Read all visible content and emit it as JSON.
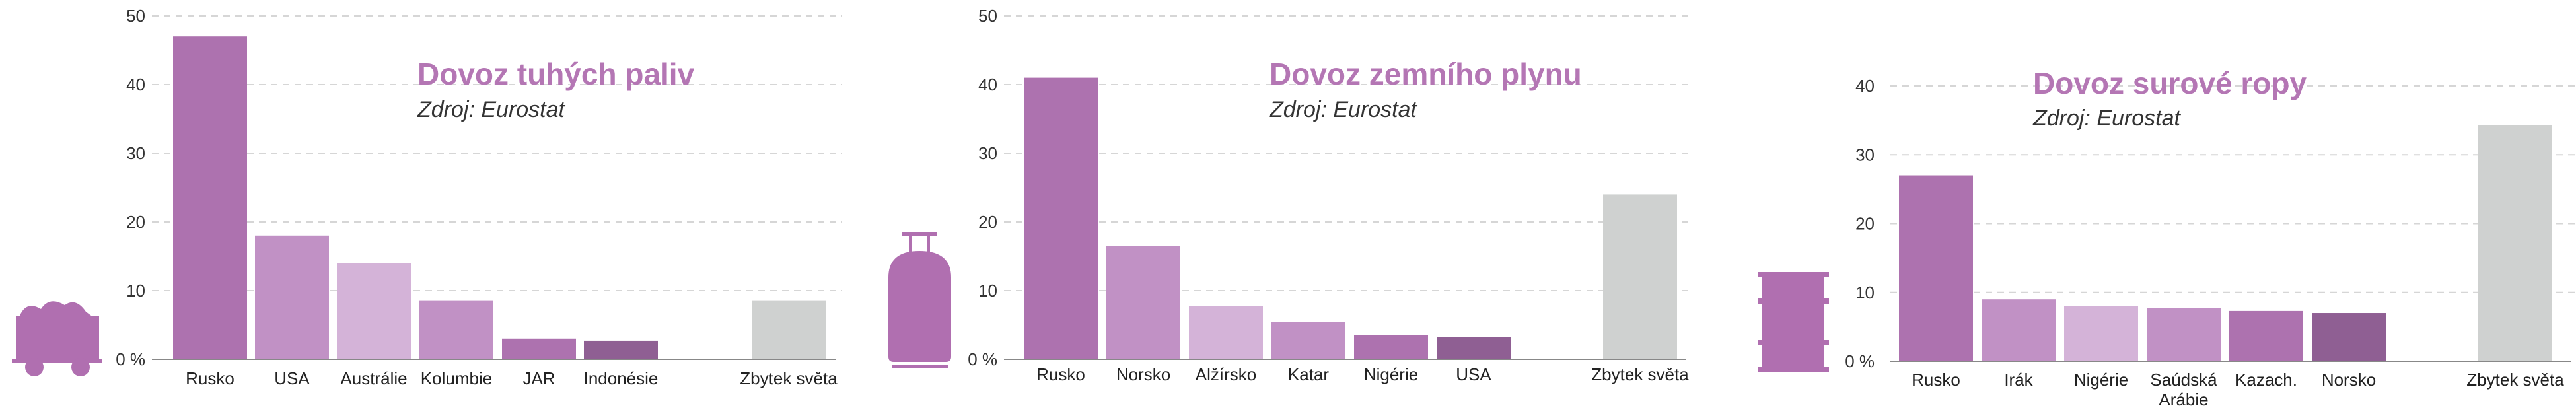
{
  "colors": {
    "c1": "#ad72af",
    "c2": "#c191c5",
    "c3": "#d4b3d8",
    "c4": "#8f5f93",
    "grey": "#cfd1d0",
    "title": "#b476b4",
    "icon": "#b06fb0"
  },
  "chart_data": [
    {
      "type": "bar",
      "title": "Dovoz tuhých paliv",
      "subtitle": "Zdroj: Eurostat",
      "icon": "coal-wagon-icon",
      "categories": [
        "Rusko",
        "USA",
        "Austrálie",
        "Kolumbie",
        "JAR",
        "Indonésie",
        "Zbytek světa"
      ],
      "values": [
        47,
        18,
        14,
        8.5,
        3,
        2.7,
        8.5
      ],
      "colors": [
        "c1",
        "c2",
        "c3",
        "c2",
        "c1",
        "c4",
        "grey"
      ],
      "ylim": [
        0,
        50
      ],
      "yticks": [
        "0 %",
        "10",
        "20",
        "30",
        "40",
        "50"
      ],
      "grid": true
    },
    {
      "type": "bar",
      "title": "Dovoz zemního plynu",
      "subtitle": "Zdroj: Eurostat",
      "icon": "gas-cylinder-icon",
      "categories": [
        "Rusko",
        "Norsko",
        "Alžírsko",
        "Katar",
        "Nigérie",
        "USA",
        "Zbytek světa"
      ],
      "values": [
        41,
        16.5,
        7.7,
        5.4,
        3.5,
        3.2,
        24
      ],
      "colors": [
        "c1",
        "c2",
        "c3",
        "c2",
        "c1",
        "c4",
        "grey"
      ],
      "ylim": [
        0,
        50
      ],
      "yticks": [
        "0 %",
        "10",
        "20",
        "30",
        "40",
        "50"
      ],
      "grid": true
    },
    {
      "type": "bar",
      "title": "Dovoz surové ropy",
      "subtitle": "Zdroj: Eurostat",
      "icon": "oil-barrel-icon",
      "categories": [
        "Rusko",
        "Irák",
        "Nigérie",
        "Saúdská Arábie",
        "Kazach.",
        "Norsko",
        "Zbytek světa"
      ],
      "category_lines": [
        [
          "Rusko"
        ],
        [
          "Irák"
        ],
        [
          "Nigérie"
        ],
        [
          "Saúdská",
          "Arábie"
        ],
        [
          "Kazach."
        ],
        [
          "Norsko"
        ],
        [
          "Zbytek světa"
        ]
      ],
      "values": [
        27,
        9,
        8,
        7.7,
        7.3,
        7,
        34.3
      ],
      "colors": [
        "c1",
        "c2",
        "c3",
        "c2",
        "c1",
        "c4",
        "grey"
      ],
      "ylim": [
        0,
        40
      ],
      "yticks": [
        "0 %",
        "10",
        "20",
        "30",
        "40"
      ],
      "grid": true
    }
  ]
}
